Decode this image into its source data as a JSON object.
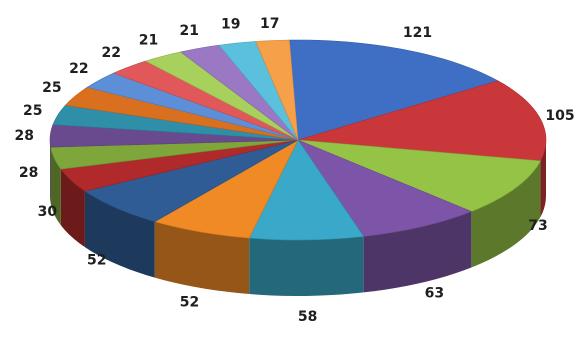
{
  "chart_data": {
    "type": "pie",
    "style": "3d",
    "values": [
      121,
      105,
      73,
      63,
      58,
      52,
      52,
      30,
      28,
      28,
      25,
      25,
      22,
      22,
      21,
      21,
      19,
      17
    ],
    "labels": [
      "121",
      "105",
      "73",
      "63",
      "58",
      "52",
      "52",
      "30",
      "28",
      "28",
      "25",
      "25",
      "22",
      "22",
      "21",
      "21",
      "19",
      "17"
    ],
    "colors": [
      "#3f6fc4",
      "#c9373a",
      "#94c346",
      "#7d55a8",
      "#3aa8c8",
      "#f08a25",
      "#2f5c95",
      "#b02a2c",
      "#7ea63a",
      "#6a4a8f",
      "#2f8ea8",
      "#d9701f",
      "#5d8fd8",
      "#e0585a",
      "#a8d05c",
      "#9a78c4",
      "#5bc0dc",
      "#f7a04a"
    ],
    "legend": "none"
  }
}
